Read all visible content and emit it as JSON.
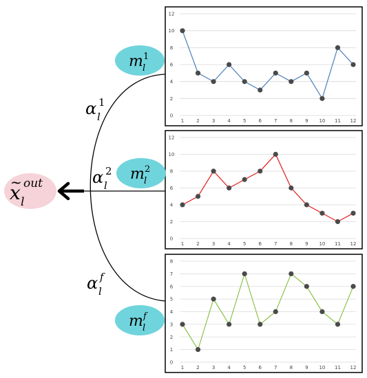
{
  "output_node": {
    "base": "x",
    "sub": "l",
    "sup": "out",
    "tilde": "~",
    "color": "#f5d3d9"
  },
  "module_nodes": [
    {
      "base": "m",
      "sub": "l",
      "sup": "1",
      "color": "#70d4dc"
    },
    {
      "base": "m",
      "sub": "l",
      "sup": "2",
      "color": "#70d4dc"
    },
    {
      "base": "m",
      "sub": "l",
      "sup": "f",
      "color": "#70d4dc"
    }
  ],
  "weights": [
    {
      "base": "α",
      "sub": "l",
      "sup": "1"
    },
    {
      "base": "α",
      "sub": "l",
      "sup": "2"
    },
    {
      "base": "α",
      "sub": "l",
      "sup": "f"
    }
  ],
  "chart_data": [
    {
      "type": "line",
      "x": [
        1,
        2,
        3,
        4,
        5,
        6,
        7,
        8,
        9,
        10,
        11,
        12
      ],
      "y": [
        10,
        5,
        4,
        6,
        4,
        3,
        5,
        4,
        5,
        2,
        8,
        6
      ],
      "ylim": [
        0,
        12
      ],
      "yticks": [
        0,
        2,
        4,
        6,
        8,
        10,
        12
      ],
      "xticks": [
        "1",
        "2",
        "3",
        "4",
        "5",
        "6",
        "7",
        "8",
        "9",
        "10",
        "11",
        "12"
      ],
      "yticks_labels": [
        "0",
        "2",
        "4",
        "6",
        "8",
        "10",
        "12"
      ],
      "line_color": "#4a7ebb",
      "grid": true
    },
    {
      "type": "line",
      "x": [
        1,
        2,
        3,
        4,
        5,
        6,
        7,
        8,
        9,
        10,
        11,
        12
      ],
      "y": [
        4,
        5,
        8,
        6,
        7,
        8,
        10,
        6,
        4,
        3,
        2,
        3
      ],
      "ylim": [
        0,
        12
      ],
      "yticks": [
        0,
        2,
        4,
        6,
        8,
        10,
        12
      ],
      "xticks": [
        "1",
        "2",
        "3",
        "4",
        "5",
        "6",
        "7",
        "8",
        "9",
        "10",
        "11",
        "12"
      ],
      "yticks_labels": [
        "0",
        "2",
        "4",
        "6",
        "8",
        "10",
        "12"
      ],
      "line_color": "#e31a1c",
      "grid": true
    },
    {
      "type": "line",
      "x": [
        1,
        2,
        3,
        4,
        5,
        6,
        7,
        8,
        9,
        10,
        11,
        12
      ],
      "y": [
        3,
        1,
        5,
        3,
        7,
        3,
        4,
        7,
        6,
        4,
        3,
        6
      ],
      "ylim": [
        0,
        8
      ],
      "yticks": [
        0,
        1,
        2,
        3,
        4,
        5,
        6,
        7,
        8
      ],
      "xticks": [
        "1",
        "2",
        "3",
        "4",
        "5",
        "6",
        "7",
        "8",
        "9",
        "10",
        "11",
        "12"
      ],
      "yticks_labels": [
        "0",
        "1",
        "2",
        "3",
        "4",
        "5",
        "6",
        "7",
        "8"
      ],
      "line_color": "#8bc34a",
      "grid": true
    }
  ]
}
